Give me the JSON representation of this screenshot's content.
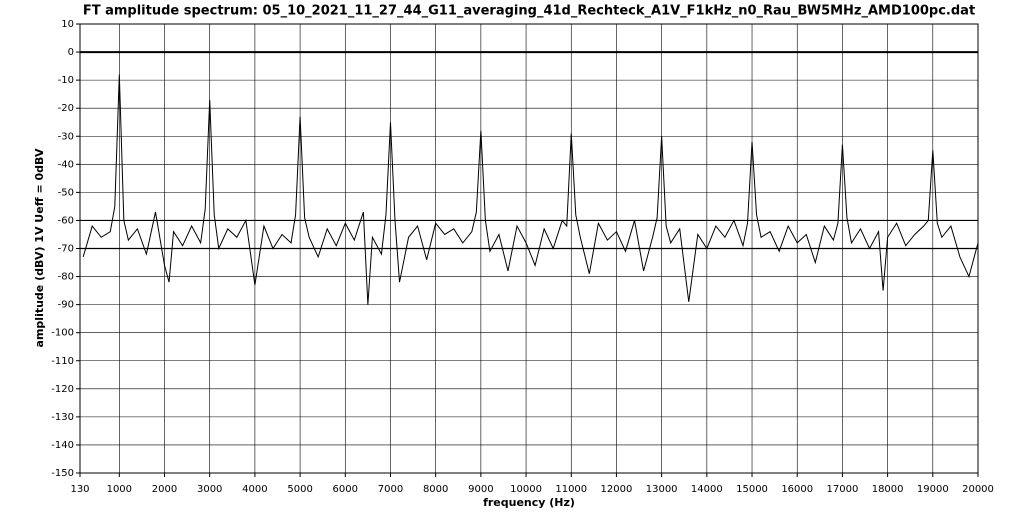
{
  "chart_data": {
    "type": "line",
    "title": "FT amplitude spectrum: 05_10_2021_11_27_44_G11_averaging_41d_Rechteck_A1V_F1kHz_n0_Rau_BW5MHz_AMD100pc.dat",
    "x_label": "frequency (Hz)",
    "y_label": "amplitude (dBV) 1V Ueff = 0dBV",
    "xlim": [
      130,
      20000
    ],
    "xticks": [
      130,
      1000,
      2000,
      3000,
      4000,
      5000,
      6000,
      7000,
      8000,
      9000,
      10000,
      11000,
      12000,
      13000,
      14000,
      15000,
      16000,
      17000,
      18000,
      19000,
      20000
    ],
    "ylim": [
      -150,
      10
    ],
    "yticks": [
      -150,
      -140,
      -130,
      -120,
      -110,
      -100,
      -90,
      -80,
      -70,
      -60,
      -50,
      -40,
      -30,
      -20,
      -10,
      0,
      10
    ],
    "grid": true,
    "reference_lines": [
      0,
      -60,
      -70
    ],
    "x": [
      200,
      400,
      600,
      800,
      900,
      1000,
      1100,
      1200,
      1400,
      1600,
      1800,
      2000,
      2100,
      2200,
      2400,
      2600,
      2800,
      2900,
      3000,
      3100,
      3200,
      3400,
      3600,
      3800,
      4000,
      4200,
      4400,
      4600,
      4800,
      4900,
      5000,
      5100,
      5200,
      5400,
      5600,
      5800,
      6000,
      6200,
      6400,
      6500,
      6600,
      6800,
      6900,
      7000,
      7100,
      7200,
      7400,
      7600,
      7800,
      8000,
      8200,
      8400,
      8600,
      8800,
      8900,
      9000,
      9100,
      9200,
      9400,
      9600,
      9800,
      10000,
      10200,
      10400,
      10600,
      10800,
      10900,
      11000,
      11100,
      11200,
      11400,
      11600,
      11800,
      12000,
      12200,
      12400,
      12600,
      12800,
      12900,
      13000,
      13100,
      13200,
      13400,
      13600,
      13800,
      14000,
      14200,
      14400,
      14600,
      14800,
      14900,
      15000,
      15100,
      15200,
      15400,
      15600,
      15800,
      16000,
      16200,
      16400,
      16600,
      16800,
      16900,
      17000,
      17100,
      17200,
      17400,
      17600,
      17800,
      17900,
      18000,
      18200,
      18400,
      18600,
      18800,
      18900,
      19000,
      19100,
      19200,
      19400,
      19600,
      19800,
      20000
    ],
    "series": [
      {
        "name": "spectrum",
        "color": "#000000",
        "values": [
          -73,
          -62,
          -66,
          -64,
          -55,
          -8,
          -60,
          -67,
          -63,
          -72,
          -57,
          -76,
          -82,
          -64,
          -69,
          -62,
          -68,
          -56,
          -17,
          -58,
          -70,
          -63,
          -66,
          -60,
          -83,
          -62,
          -70,
          -65,
          -68,
          -58,
          -23,
          -59,
          -66,
          -73,
          -63,
          -69,
          -61,
          -67,
          -57,
          -90,
          -66,
          -72,
          -58,
          -25,
          -60,
          -82,
          -66,
          -62,
          -74,
          -61,
          -65,
          -63,
          -68,
          -64,
          -57,
          -28,
          -60,
          -71,
          -65,
          -78,
          -62,
          -68,
          -76,
          -63,
          -70,
          -60,
          -62,
          -29,
          -58,
          -66,
          -79,
          -61,
          -67,
          -64,
          -71,
          -60,
          -78,
          -66,
          -59,
          -30,
          -62,
          -68,
          -63,
          -89,
          -65,
          -70,
          -62,
          -66,
          -60,
          -69,
          -61,
          -32,
          -58,
          -66,
          -64,
          -71,
          -62,
          -68,
          -65,
          -75,
          -62,
          -67,
          -61,
          -33,
          -59,
          -68,
          -63,
          -70,
          -64,
          -85,
          -66,
          -61,
          -69,
          -65,
          -62,
          -60,
          -35,
          -61,
          -66,
          -62,
          -73,
          -80,
          -68
        ]
      }
    ]
  }
}
